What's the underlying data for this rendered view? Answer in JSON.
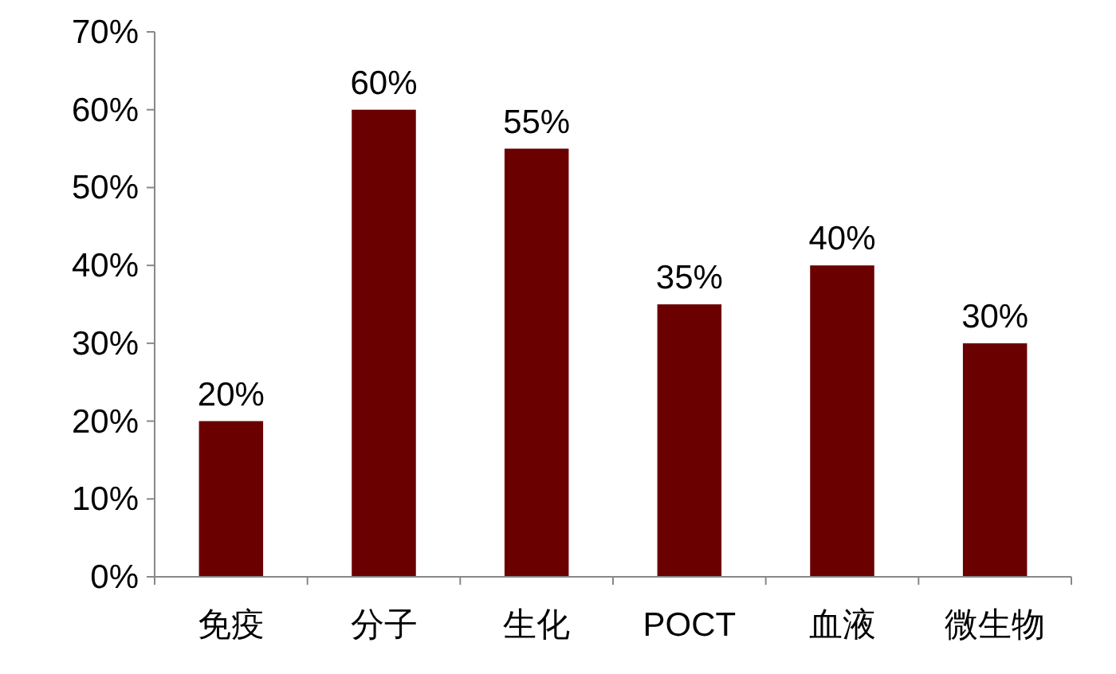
{
  "chart_data": {
    "type": "bar",
    "categories": [
      "免疫",
      "分子",
      "生化",
      "POCT",
      "血液",
      "微生物"
    ],
    "values": [
      20,
      60,
      55,
      35,
      40,
      30
    ],
    "value_labels": [
      "20%",
      "60%",
      "55%",
      "35%",
      "40%",
      "30%"
    ],
    "color": "#6b0000",
    "ylim": [
      0,
      70
    ],
    "yticks": [
      {
        "value": 0,
        "label": "0%"
      },
      {
        "value": 10,
        "label": "10%"
      },
      {
        "value": 20,
        "label": "20%"
      },
      {
        "value": 30,
        "label": "30%"
      },
      {
        "value": 40,
        "label": "40%"
      },
      {
        "value": 50,
        "label": "50%"
      },
      {
        "value": 60,
        "label": "60%"
      },
      {
        "value": 70,
        "label": "70%"
      }
    ],
    "grid": false
  }
}
